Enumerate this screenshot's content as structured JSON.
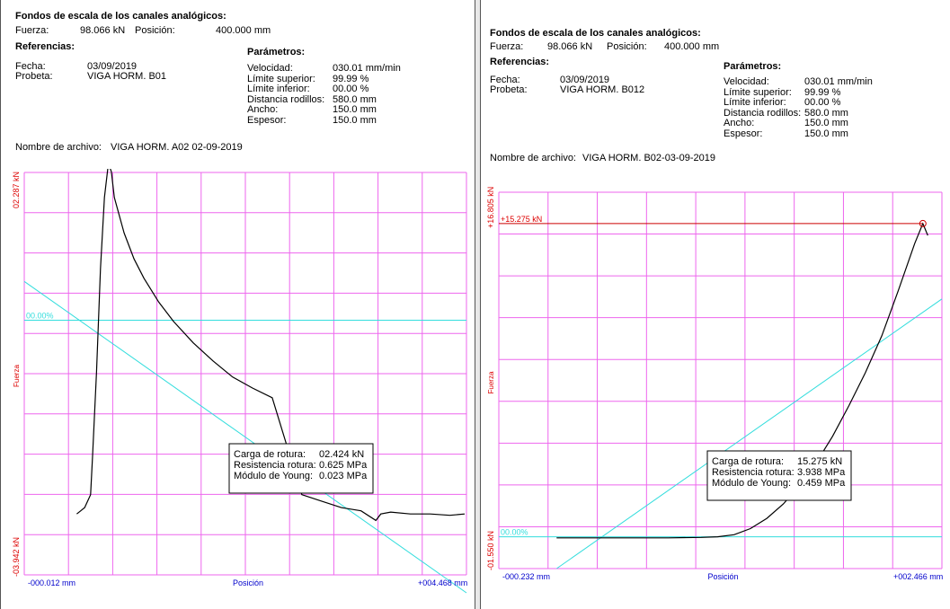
{
  "panels": [
    {
      "scale_title": "Fondos de escala de los canales analógicos:",
      "fuerza_label": "Fuerza:",
      "fuerza_value": "98.066 kN",
      "posicion_label": "Posición:",
      "posicion_value": "400.000 mm",
      "referencias_title": "Referencias:",
      "fecha_label": "Fecha:",
      "fecha_value": "03/09/2019",
      "probeta_label": "Probeta:",
      "probeta_value": "VIGA HORM. B01",
      "parametros_title": "Parámetros:",
      "params": [
        {
          "label": "Velocidad:",
          "value": "030.01 mm/min"
        },
        {
          "label": "Límite superior:",
          "value": "99.99 %"
        },
        {
          "label": "Límite inferior:",
          "value": "00.00 %"
        },
        {
          "label": "Distancia rodillos:",
          "value": "580.0 mm"
        },
        {
          "label": "Ancho:",
          "value": "150.0 mm"
        },
        {
          "label": "Espesor:",
          "value": "150.0 mm"
        }
      ],
      "archivo_label": "Nombre de archivo:",
      "archivo_value": "VIGA HORM. A02 02-09-2019",
      "results": [
        {
          "label": "Carga de rotura:",
          "value": "02.424 kN"
        },
        {
          "label": "Resistencia rotura:",
          "value": "0.625 MPa"
        },
        {
          "label": "Módulo de Young:",
          "value": "0.023 MPa"
        }
      ]
    },
    {
      "scale_title": "Fondos de escala de los canales analógicos:",
      "fuerza_label": "Fuerza:",
      "fuerza_value": "98.066 kN",
      "posicion_label": "Posición:",
      "posicion_value": "400.000 mm",
      "referencias_title": "Referencias:",
      "fecha_label": "Fecha:",
      "fecha_value": "03/09/2019",
      "probeta_label": "Probeta:",
      "probeta_value": "VIGA HORM. B012",
      "parametros_title": "Parámetros:",
      "params": [
        {
          "label": "Velocidad:",
          "value": "030.01 mm/min"
        },
        {
          "label": "Límite superior:",
          "value": "99.99 %"
        },
        {
          "label": "Límite inferior:",
          "value": "00.00 %"
        },
        {
          "label": "Distancia rodillos:",
          "value": "580.0 mm"
        },
        {
          "label": "Ancho:",
          "value": "150.0 mm"
        },
        {
          "label": "Espesor:",
          "value": "150.0 mm"
        }
      ],
      "archivo_label": "Nombre de archivo:",
      "archivo_value": "VIGA HORM. B02-03-09-2019",
      "results": [
        {
          "label": "Carga de rotura:",
          "value": "15.275 kN"
        },
        {
          "label": "Resistencia rotura:",
          "value": "3.938 MPa"
        },
        {
          "label": "Módulo de Young:",
          "value": "0.459 MPa"
        }
      ]
    }
  ],
  "colors": {
    "grid": "#ee66ee",
    "axis_text_red": "#dd0000",
    "axis_text_blue": "#0000cc",
    "curve": "#000000",
    "peak_line": "#cc0000",
    "young_line": "#33dddd"
  },
  "chart_data": [
    {
      "type": "line",
      "xlabel": "Posición",
      "ylabel": "Fuerza",
      "xlim": [
        -0.012,
        4.468
      ],
      "ylim": [
        -3.942,
        2.287
      ],
      "x_min_label": "-000.012 mm",
      "x_max_label": "+004.468 mm",
      "y_min_label": "-03.942 kN",
      "y_max_label": "02.287 kN",
      "peak_label": "02.424 kN",
      "zero_label": "00.00%",
      "peak": {
        "x": 0.84,
        "y": 2.424
      },
      "series": [
        {
          "x": [
            0.52,
            0.56,
            0.6,
            0.63,
            0.66,
            0.68,
            0.72,
            0.76,
            0.8,
            0.84,
            0.87,
            0.9,
            1.0,
            1.1,
            1.2,
            1.35,
            1.5,
            1.7,
            1.9,
            2.1,
            2.3,
            2.5,
            2.8,
            3.0,
            3.2,
            3.4,
            3.55,
            3.6,
            3.7,
            3.9,
            4.1,
            4.3,
            4.45
          ],
          "values": [
            -3.0,
            -2.95,
            -2.9,
            -2.8,
            -2.7,
            -2.1,
            -0.8,
            0.8,
            1.9,
            2.424,
            2.3,
            1.9,
            1.35,
            0.95,
            0.65,
            0.28,
            -0.02,
            -0.35,
            -0.63,
            -0.88,
            -1.05,
            -1.2,
            -2.7,
            -2.8,
            -2.9,
            -2.95,
            -3.1,
            -3.0,
            -2.97,
            -3.0,
            -3.0,
            -3.02,
            -3.0
          ]
        }
      ],
      "young_line": {
        "x": [
          -0.012,
          4.468
        ],
        "y": [
          0.6,
          -4.22
        ]
      }
    },
    {
      "type": "line",
      "xlabel": "Posición",
      "ylabel": "Fuerza",
      "xlim": [
        -0.232,
        2.466
      ],
      "ylim": [
        -1.55,
        16.805
      ],
      "x_min_label": "-000.232 mm",
      "x_max_label": "+002.466 mm",
      "y_min_label": "-01.550 kN",
      "y_max_label": "+16.805 kN",
      "peak_label": "+15.275 kN",
      "zero_label": "00.00%",
      "peak": {
        "x": 2.35,
        "y": 15.275
      },
      "series": [
        {
          "x": [
            0.12,
            0.4,
            0.8,
            1.0,
            1.1,
            1.2,
            1.3,
            1.4,
            1.5,
            1.6,
            1.7,
            1.8,
            1.9,
            2.0,
            2.1,
            2.2,
            2.3,
            2.35,
            2.38
          ],
          "values": [
            -0.05,
            -0.05,
            -0.05,
            -0.03,
            0.0,
            0.1,
            0.4,
            0.9,
            1.6,
            2.5,
            3.6,
            4.9,
            6.4,
            8.0,
            9.8,
            12.0,
            14.3,
            15.275,
            14.7
          ]
        }
      ],
      "young_line": {
        "x": [
          0.12,
          2.466
        ],
        "y": [
          -1.55,
          11.6
        ]
      }
    }
  ]
}
